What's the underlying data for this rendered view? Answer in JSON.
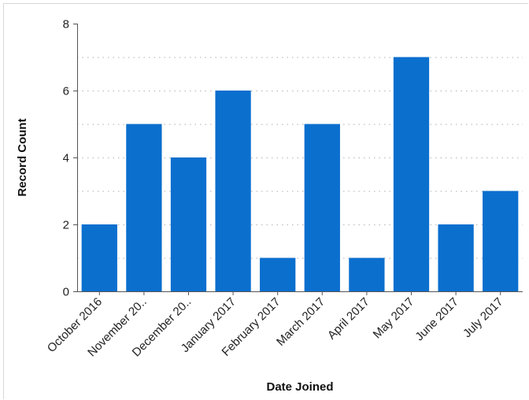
{
  "chart_data": {
    "type": "bar",
    "xlabel": "Date Joined",
    "ylabel": "Record Count",
    "categories": [
      "October 2016",
      "November 20..",
      "December 20..",
      "January 2017",
      "February 2017",
      "March 2017",
      "April 2017",
      "May 2017",
      "June 2017",
      "July 2017"
    ],
    "values": [
      2,
      5,
      4,
      6,
      1,
      5,
      1,
      7,
      2,
      3
    ],
    "ylim": [
      0,
      8
    ],
    "yticks": [
      0,
      2,
      4,
      6,
      8
    ],
    "grid": "horizontal-dotted",
    "bar_color": "#0b6fce",
    "legend": "none"
  }
}
